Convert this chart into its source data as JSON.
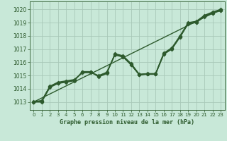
{
  "title": "Graphe pression niveau de la mer (hPa)",
  "bg_color": "#c8e8d8",
  "grid_color": "#a8c8b8",
  "line_color": "#2d5a2d",
  "x_ticks": [
    0,
    1,
    2,
    3,
    4,
    5,
    6,
    7,
    8,
    9,
    10,
    11,
    12,
    13,
    14,
    15,
    16,
    17,
    18,
    19,
    20,
    21,
    22,
    23
  ],
  "y_ticks": [
    1013,
    1014,
    1015,
    1016,
    1017,
    1018,
    1019,
    1020
  ],
  "ylim": [
    1012.4,
    1020.6
  ],
  "xlim": [
    -0.5,
    23.5
  ],
  "series": [
    {
      "x": [
        0,
        23
      ],
      "y": [
        1013.0,
        1020.0
      ],
      "marker": null,
      "markersize": 0,
      "linewidth": 1.0
    },
    {
      "x": [
        0,
        1,
        2,
        3,
        4,
        5,
        6,
        7,
        8,
        9,
        10,
        11,
        12,
        13,
        14,
        15,
        16,
        17,
        18,
        19,
        20,
        21,
        22,
        23
      ],
      "y": [
        1013.0,
        1013.0,
        1014.1,
        1014.4,
        1014.5,
        1014.6,
        1015.3,
        1015.3,
        1014.9,
        1015.15,
        1016.65,
        1016.5,
        1015.9,
        1015.1,
        1015.15,
        1015.15,
        1016.7,
        1017.1,
        1018.0,
        1019.0,
        1019.1,
        1019.55,
        1019.8,
        1020.0
      ],
      "marker": "D",
      "markersize": 2.5,
      "linewidth": 1.0
    },
    {
      "x": [
        0,
        1,
        2,
        3,
        4,
        5,
        6,
        7,
        8,
        9,
        10,
        11,
        12,
        13,
        14,
        15,
        16,
        17,
        18,
        19,
        20,
        21,
        22,
        23
      ],
      "y": [
        1013.0,
        1013.05,
        1014.15,
        1014.45,
        1014.55,
        1014.65,
        1015.25,
        1015.28,
        1014.95,
        1015.2,
        1016.6,
        1016.45,
        1015.85,
        1015.08,
        1015.13,
        1015.13,
        1016.65,
        1017.05,
        1017.95,
        1018.95,
        1019.05,
        1019.5,
        1019.75,
        1019.95
      ],
      "marker": "D",
      "markersize": 2.5,
      "linewidth": 1.0
    },
    {
      "x": [
        0,
        1,
        2,
        3,
        4,
        5,
        6,
        7,
        8,
        9,
        10,
        11,
        12,
        13,
        14,
        15,
        16,
        17,
        18,
        19,
        20,
        21,
        22,
        23
      ],
      "y": [
        1013.0,
        1013.1,
        1014.2,
        1014.5,
        1014.6,
        1014.7,
        1015.2,
        1015.25,
        1015.0,
        1015.25,
        1016.55,
        1016.4,
        1015.8,
        1015.05,
        1015.1,
        1015.1,
        1016.6,
        1017.0,
        1017.9,
        1018.9,
        1019.0,
        1019.45,
        1019.7,
        1019.9
      ],
      "marker": "D",
      "markersize": 2.5,
      "linewidth": 1.0
    },
    {
      "x": [
        0,
        1,
        2,
        3,
        4,
        5,
        6,
        7,
        8,
        9,
        10,
        11,
        12,
        13,
        14,
        15,
        16,
        17,
        18,
        19,
        20,
        21,
        22,
        23
      ],
      "y": [
        1013.05,
        1013.1,
        1014.15,
        1014.45,
        1014.55,
        1014.65,
        1015.25,
        1015.22,
        1014.98,
        1015.22,
        1016.58,
        1016.42,
        1015.82,
        1015.06,
        1015.12,
        1015.12,
        1016.62,
        1017.02,
        1017.92,
        1018.92,
        1019.02,
        1019.47,
        1019.72,
        1019.92
      ],
      "marker": "D",
      "markersize": 2.5,
      "linewidth": 1.0
    }
  ]
}
